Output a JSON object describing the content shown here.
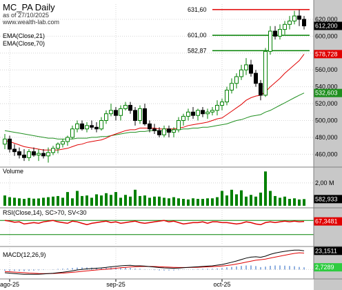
{
  "header": {
    "title": "MC_PA Daily",
    "subtitle": "as of 27/10/2025",
    "website": "www.wealth-lab.com"
  },
  "colors": {
    "bull": "#008000",
    "bear": "#000000",
    "ema_fast": "#e00000",
    "ema_slow": "#1f8f1f",
    "volume": "#008000",
    "rsi": "#e00000",
    "rsi_bands": "#008000",
    "macd": "#000000",
    "signal": "#e00000",
    "histogram": "#2060c0",
    "resistance": "#e00000",
    "support": "#008000"
  },
  "chart_data": {
    "type": "candlestick",
    "x_labels": [
      {
        "index": 1,
        "label": "ago-25"
      },
      {
        "index": 23,
        "label": "sep-25"
      },
      {
        "index": 45,
        "label": "oct-25"
      }
    ],
    "price_axis": {
      "ticks": [
        620,
        600,
        580,
        560,
        540,
        520,
        500,
        480,
        460
      ],
      "tick_labels": [
        "620,000",
        "600,000",
        "580,000",
        "560,000",
        "540,000",
        "520,000",
        "500,000",
        "480,000",
        "460,000"
      ],
      "range": [
        448,
        638
      ]
    },
    "candles": [
      {
        "o": 472,
        "h": 484,
        "l": 466,
        "c": 478
      },
      {
        "o": 478,
        "h": 482,
        "l": 462,
        "c": 466
      },
      {
        "o": 466,
        "h": 472,
        "l": 458,
        "c": 463
      },
      {
        "o": 463,
        "h": 468,
        "l": 455,
        "c": 459
      },
      {
        "o": 459,
        "h": 466,
        "l": 452,
        "c": 456
      },
      {
        "o": 456,
        "h": 466,
        "l": 452,
        "c": 463
      },
      {
        "o": 463,
        "h": 468,
        "l": 457,
        "c": 459
      },
      {
        "o": 459,
        "h": 466,
        "l": 452,
        "c": 461
      },
      {
        "o": 461,
        "h": 466,
        "l": 455,
        "c": 458
      },
      {
        "o": 458,
        "h": 468,
        "l": 450,
        "c": 462
      },
      {
        "o": 462,
        "h": 470,
        "l": 459,
        "c": 467
      },
      {
        "o": 467,
        "h": 474,
        "l": 461,
        "c": 472
      },
      {
        "o": 472,
        "h": 478,
        "l": 468,
        "c": 475
      },
      {
        "o": 475,
        "h": 482,
        "l": 470,
        "c": 480
      },
      {
        "o": 480,
        "h": 494,
        "l": 478,
        "c": 490
      },
      {
        "o": 490,
        "h": 500,
        "l": 486,
        "c": 496
      },
      {
        "o": 496,
        "h": 500,
        "l": 488,
        "c": 490
      },
      {
        "o": 490,
        "h": 498,
        "l": 486,
        "c": 494
      },
      {
        "o": 494,
        "h": 500,
        "l": 489,
        "c": 492
      },
      {
        "o": 492,
        "h": 498,
        "l": 486,
        "c": 490
      },
      {
        "o": 490,
        "h": 504,
        "l": 488,
        "c": 500
      },
      {
        "o": 500,
        "h": 512,
        "l": 496,
        "c": 508
      },
      {
        "o": 508,
        "h": 520,
        "l": 505,
        "c": 512
      },
      {
        "o": 512,
        "h": 516,
        "l": 500,
        "c": 506
      },
      {
        "o": 506,
        "h": 518,
        "l": 500,
        "c": 514
      },
      {
        "o": 514,
        "h": 522,
        "l": 512,
        "c": 518
      },
      {
        "o": 518,
        "h": 522,
        "l": 508,
        "c": 512
      },
      {
        "o": 512,
        "h": 516,
        "l": 494,
        "c": 500
      },
      {
        "o": 500,
        "h": 518,
        "l": 496,
        "c": 514
      },
      {
        "o": 514,
        "h": 520,
        "l": 494,
        "c": 496
      },
      {
        "o": 496,
        "h": 500,
        "l": 486,
        "c": 490
      },
      {
        "o": 490,
        "h": 496,
        "l": 484,
        "c": 488
      },
      {
        "o": 488,
        "h": 492,
        "l": 480,
        "c": 483
      },
      {
        "o": 483,
        "h": 494,
        "l": 480,
        "c": 490
      },
      {
        "o": 490,
        "h": 494,
        "l": 480,
        "c": 486
      },
      {
        "o": 486,
        "h": 492,
        "l": 480,
        "c": 489
      },
      {
        "o": 489,
        "h": 504,
        "l": 486,
        "c": 500
      },
      {
        "o": 500,
        "h": 508,
        "l": 494,
        "c": 505
      },
      {
        "o": 505,
        "h": 514,
        "l": 500,
        "c": 510
      },
      {
        "o": 510,
        "h": 516,
        "l": 502,
        "c": 506
      },
      {
        "o": 506,
        "h": 514,
        "l": 500,
        "c": 512
      },
      {
        "o": 512,
        "h": 516,
        "l": 504,
        "c": 508
      },
      {
        "o": 508,
        "h": 514,
        "l": 502,
        "c": 510
      },
      {
        "o": 510,
        "h": 516,
        "l": 506,
        "c": 512
      },
      {
        "o": 512,
        "h": 524,
        "l": 506,
        "c": 518
      },
      {
        "o": 518,
        "h": 526,
        "l": 512,
        "c": 522
      },
      {
        "o": 522,
        "h": 540,
        "l": 518,
        "c": 536
      },
      {
        "o": 536,
        "h": 550,
        "l": 532,
        "c": 544
      },
      {
        "o": 544,
        "h": 556,
        "l": 538,
        "c": 552
      },
      {
        "o": 552,
        "h": 566,
        "l": 548,
        "c": 560
      },
      {
        "o": 560,
        "h": 574,
        "l": 554,
        "c": 566
      },
      {
        "o": 566,
        "h": 572,
        "l": 552,
        "c": 556
      },
      {
        "o": 556,
        "h": 560,
        "l": 540,
        "c": 544
      },
      {
        "o": 544,
        "h": 548,
        "l": 524,
        "c": 530
      },
      {
        "o": 530,
        "h": 586,
        "l": 528,
        "c": 582
      },
      {
        "o": 582,
        "h": 612,
        "l": 578,
        "c": 606
      },
      {
        "o": 606,
        "h": 612,
        "l": 596,
        "c": 600
      },
      {
        "o": 600,
        "h": 614,
        "l": 596,
        "c": 608
      },
      {
        "o": 608,
        "h": 618,
        "l": 602,
        "c": 614
      },
      {
        "o": 614,
        "h": 624,
        "l": 608,
        "c": 618
      },
      {
        "o": 618,
        "h": 630,
        "l": 614,
        "c": 624
      },
      {
        "o": 624,
        "h": 631,
        "l": 612,
        "c": 620
      },
      {
        "o": 620,
        "h": 624,
        "l": 608,
        "c": 612.2
      }
    ],
    "ema21": [
      476,
      475,
      473,
      471,
      469,
      468,
      467,
      466,
      465,
      465,
      465,
      465,
      466,
      467,
      469,
      471,
      472,
      474,
      475,
      476,
      477,
      479,
      482,
      484,
      486,
      488,
      489,
      489,
      491,
      491,
      491,
      491,
      490,
      490,
      490,
      490,
      491,
      492,
      494,
      495,
      496,
      497,
      498,
      500,
      502,
      503,
      507,
      511,
      515,
      519,
      524,
      527,
      529,
      530,
      534,
      540,
      545,
      550,
      556,
      561,
      566,
      571,
      578.728
    ],
    "ema70": [
      488,
      487,
      486,
      485,
      484,
      483,
      482,
      481,
      480,
      479,
      479,
      478,
      478,
      478,
      478,
      479,
      479,
      479,
      480,
      480,
      481,
      481,
      482,
      483,
      484,
      485,
      486,
      486,
      487,
      487,
      488,
      488,
      488,
      488,
      488,
      489,
      489,
      490,
      490,
      491,
      491,
      492,
      492,
      493,
      494,
      495,
      496,
      498,
      500,
      501,
      503,
      505,
      506,
      507,
      510,
      512,
      515,
      518,
      521,
      524,
      527,
      530,
      532.603
    ],
    "resistance": {
      "value": 631.6,
      "label": "631,60",
      "from_index": 43
    },
    "support_levels": [
      {
        "value": 601.0,
        "label": "601,00",
        "from_index": 43
      },
      {
        "value": 582.87,
        "label": "582,87",
        "from_index": 43
      }
    ],
    "last_price": {
      "value": 612.2,
      "label": "612,200"
    },
    "ema_fast_last": {
      "value": 578.728,
      "label": "578,728"
    },
    "ema_slow_last": {
      "value": 532.603,
      "label": "532,603"
    },
    "legend": [
      {
        "name": "EMA(Close,21)"
      },
      {
        "name": "EMA(Close,70)"
      }
    ],
    "volume": {
      "title": "Volume",
      "tick_label": "2,00 M",
      "tick_value": 2000000,
      "range": [
        0,
        3200000
      ],
      "last_label": "582,933",
      "values": [
        900000,
        750000,
        700000,
        650000,
        600000,
        680000,
        620000,
        640000,
        700000,
        750000,
        800000,
        850000,
        700000,
        1200000,
        650000,
        1300000,
        850000,
        900000,
        700000,
        1000000,
        900000,
        1100000,
        950000,
        1200000,
        700000,
        950000,
        800000,
        1400000,
        850000,
        900000,
        700000,
        800000,
        800000,
        700000,
        650000,
        750000,
        650000,
        600000,
        550000,
        650000,
        600000,
        600000,
        650000,
        650000,
        750000,
        1300000,
        900000,
        1400000,
        1000000,
        1350000,
        800000,
        950000,
        800000,
        1150000,
        3000000,
        1300000,
        850000,
        700000,
        800000,
        600000,
        650000,
        550000,
        582933
      ]
    },
    "rsi": {
      "title": "RSI(Close,14), SC>70, SV<30",
      "range": [
        0,
        100
      ],
      "bands": [
        70,
        30
      ],
      "last_label": "67,3481",
      "values": [
        70,
        68,
        65,
        66,
        60,
        62,
        64,
        62,
        66,
        68,
        70,
        66,
        64,
        62,
        68,
        66,
        62,
        58,
        62,
        64,
        66,
        68,
        64,
        66,
        62,
        64,
        66,
        68,
        64,
        62,
        64,
        66,
        68,
        70,
        66,
        68,
        64,
        60,
        62,
        64,
        64,
        66,
        62,
        66,
        66,
        64,
        64,
        62,
        60,
        62,
        66,
        64,
        60,
        58,
        64,
        66,
        64,
        66,
        68,
        66,
        68,
        66,
        67.35
      ]
    },
    "macd": {
      "title": "MACD(12,26,9)",
      "range": [
        -10,
        26
      ],
      "macd_label": "23,1511",
      "hist_label": "2,7289",
      "macd_values": [
        -4,
        -4.5,
        -5,
        -5.5,
        -6,
        -6,
        -6,
        -5.8,
        -5.5,
        -5,
        -4.6,
        -4,
        -3.4,
        -2.6,
        -1.6,
        -0.6,
        0.2,
        0.8,
        1.2,
        1.6,
        2,
        2.6,
        3.4,
        4,
        4.6,
        5,
        5.2,
        4.6,
        4.6,
        4.2,
        3.6,
        3,
        2.4,
        2,
        1.8,
        1.6,
        1.8,
        2.2,
        2.6,
        3,
        3.4,
        3.8,
        4.2,
        4.6,
        5.4,
        6.2,
        7.6,
        9,
        10.6,
        12.4,
        14.2,
        15.4,
        15.8,
        15.2,
        16.6,
        18.8,
        20.4,
        21.6,
        22.6,
        23.4,
        24,
        24,
        23.15
      ],
      "signal_values": [
        -2.5,
        -2.8,
        -3.2,
        -3.6,
        -4,
        -4.4,
        -4.7,
        -4.9,
        -5,
        -5,
        -4.9,
        -4.7,
        -4.4,
        -4,
        -3.5,
        -2.9,
        -2.3,
        -1.7,
        -1.1,
        -0.6,
        -0.1,
        0.4,
        1,
        1.6,
        2.2,
        2.7,
        3.2,
        3.5,
        3.7,
        3.8,
        3.8,
        3.7,
        3.5,
        3.2,
        2.9,
        2.7,
        2.5,
        2.5,
        2.5,
        2.6,
        2.8,
        3,
        3.3,
        3.6,
        4,
        4.4,
        5,
        5.8,
        6.8,
        7.9,
        9.2,
        10.4,
        11.5,
        12.2,
        13,
        14.2,
        15.4,
        16.6,
        17.8,
        19,
        20,
        20.8,
        20.4
      ]
    }
  }
}
